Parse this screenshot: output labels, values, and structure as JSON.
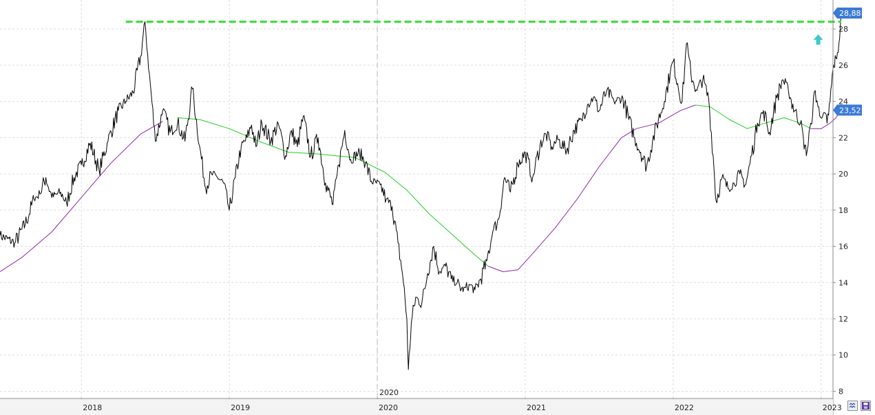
{
  "chart_data": {
    "type": "line",
    "title": "",
    "xlabel": "",
    "ylabel": "",
    "x_range": [
      2017.45,
      2023.08
    ],
    "y_range": [
      7.6,
      29.6
    ],
    "y_ticks": [
      "8",
      "10",
      "12",
      "14",
      "16",
      "18",
      "20",
      "22",
      "24",
      "26",
      "28"
    ],
    "x_ticks": [
      {
        "year": 2018,
        "label": "2018"
      },
      {
        "year": 2019,
        "label": "2019"
      },
      {
        "year": 2020,
        "label": "2020"
      },
      {
        "year": 2021,
        "label": "2021"
      },
      {
        "year": 2022,
        "label": "2022"
      },
      {
        "year": 2023,
        "label": "2023"
      }
    ],
    "vertical_marker": {
      "year": 2020,
      "label": "2020"
    },
    "grid": true,
    "series": [
      {
        "role": "price",
        "color": "#000000",
        "points": [
          [
            2017.45,
            16.6
          ],
          [
            2017.55,
            16.2
          ],
          [
            2017.62,
            17.2
          ],
          [
            2017.68,
            18.6
          ],
          [
            2017.72,
            18.9
          ],
          [
            2017.76,
            19.8
          ],
          [
            2017.8,
            18.7
          ],
          [
            2017.86,
            19.0
          ],
          [
            2017.9,
            18.4
          ],
          [
            2017.95,
            19.8
          ],
          [
            2018.0,
            20.5
          ],
          [
            2018.06,
            21.7
          ],
          [
            2018.12,
            20.2
          ],
          [
            2018.18,
            21.8
          ],
          [
            2018.25,
            23.5
          ],
          [
            2018.3,
            24.0
          ],
          [
            2018.35,
            24.5
          ],
          [
            2018.4,
            26.5
          ],
          [
            2018.43,
            28.4
          ],
          [
            2018.46,
            25.5
          ],
          [
            2018.5,
            21.8
          ],
          [
            2018.55,
            23.5
          ],
          [
            2018.6,
            22.3
          ],
          [
            2018.65,
            22.8
          ],
          [
            2018.7,
            21.8
          ],
          [
            2018.75,
            24.7
          ],
          [
            2018.8,
            21.5
          ],
          [
            2018.84,
            19.2
          ],
          [
            2018.88,
            20.0
          ],
          [
            2018.92,
            19.8
          ],
          [
            2018.96,
            19.5
          ],
          [
            2019.0,
            18.0
          ],
          [
            2019.04,
            19.8
          ],
          [
            2019.08,
            21.5
          ],
          [
            2019.12,
            22.0
          ],
          [
            2019.15,
            22.7
          ],
          [
            2019.18,
            21.5
          ],
          [
            2019.22,
            22.8
          ],
          [
            2019.28,
            21.8
          ],
          [
            2019.33,
            22.8
          ],
          [
            2019.38,
            21.0
          ],
          [
            2019.42,
            22.4
          ],
          [
            2019.46,
            21.5
          ],
          [
            2019.5,
            23.2
          ],
          [
            2019.55,
            21.0
          ],
          [
            2019.6,
            22.0
          ],
          [
            2019.65,
            19.5
          ],
          [
            2019.7,
            18.3
          ],
          [
            2019.74,
            20.5
          ],
          [
            2019.78,
            22.4
          ],
          [
            2019.82,
            20.8
          ],
          [
            2019.88,
            21.2
          ],
          [
            2019.92,
            20.6
          ],
          [
            2019.96,
            19.6
          ],
          [
            2020.02,
            19.4
          ],
          [
            2020.06,
            18.6
          ],
          [
            2020.1,
            18.2
          ],
          [
            2020.14,
            16.2
          ],
          [
            2020.17,
            14.5
          ],
          [
            2020.2,
            12.0
          ],
          [
            2020.21,
            9.2
          ],
          [
            2020.23,
            11.8
          ],
          [
            2020.26,
            13.2
          ],
          [
            2020.3,
            12.8
          ],
          [
            2020.34,
            14.5
          ],
          [
            2020.38,
            16.0
          ],
          [
            2020.42,
            14.6
          ],
          [
            2020.46,
            14.9
          ],
          [
            2020.5,
            14.2
          ],
          [
            2020.54,
            14.0
          ],
          [
            2020.58,
            13.5
          ],
          [
            2020.62,
            13.9
          ],
          [
            2020.66,
            13.6
          ],
          [
            2020.7,
            14.2
          ],
          [
            2020.74,
            15.2
          ],
          [
            2020.78,
            16.8
          ],
          [
            2020.82,
            17.5
          ],
          [
            2020.86,
            19.8
          ],
          [
            2020.9,
            19.0
          ],
          [
            2020.95,
            20.5
          ],
          [
            2021.0,
            21.2
          ],
          [
            2021.05,
            19.8
          ],
          [
            2021.1,
            21.6
          ],
          [
            2021.14,
            22.2
          ],
          [
            2021.18,
            21.5
          ],
          [
            2021.22,
            21.9
          ],
          [
            2021.28,
            21.3
          ],
          [
            2021.33,
            22.4
          ],
          [
            2021.38,
            23.0
          ],
          [
            2021.42,
            23.8
          ],
          [
            2021.46,
            24.2
          ],
          [
            2021.5,
            23.5
          ],
          [
            2021.55,
            24.6
          ],
          [
            2021.6,
            24.0
          ],
          [
            2021.66,
            24.2
          ],
          [
            2021.7,
            23.0
          ],
          [
            2021.74,
            22.0
          ],
          [
            2021.78,
            21.2
          ],
          [
            2021.82,
            20.4
          ],
          [
            2021.86,
            21.8
          ],
          [
            2021.9,
            23.0
          ],
          [
            2021.94,
            24.0
          ],
          [
            2021.98,
            25.6
          ],
          [
            2022.0,
            26.2
          ],
          [
            2022.03,
            25.0
          ],
          [
            2022.06,
            24.0
          ],
          [
            2022.09,
            27.2
          ],
          [
            2022.12,
            25.5
          ],
          [
            2022.16,
            24.6
          ],
          [
            2022.2,
            25.2
          ],
          [
            2022.24,
            24.1
          ],
          [
            2022.27,
            21.0
          ],
          [
            2022.29,
            18.5
          ],
          [
            2022.33,
            19.8
          ],
          [
            2022.37,
            19.2
          ],
          [
            2022.41,
            19.5
          ],
          [
            2022.45,
            20.0
          ],
          [
            2022.49,
            19.4
          ],
          [
            2022.53,
            21.0
          ],
          [
            2022.57,
            22.8
          ],
          [
            2022.61,
            23.5
          ],
          [
            2022.65,
            22.3
          ],
          [
            2022.7,
            24.2
          ],
          [
            2022.74,
            25.2
          ],
          [
            2022.78,
            24.5
          ],
          [
            2022.82,
            23.5
          ],
          [
            2022.86,
            22.8
          ],
          [
            2022.88,
            22.0
          ],
          [
            2022.9,
            21.0
          ],
          [
            2022.93,
            22.8
          ],
          [
            2022.96,
            24.6
          ],
          [
            2022.99,
            23.2
          ],
          [
            2023.02,
            23.4
          ],
          [
            2023.04,
            22.8
          ],
          [
            2023.06,
            24.0
          ],
          [
            2023.08,
            25.8
          ],
          [
            2023.1,
            26.4
          ],
          [
            2023.12,
            27.2
          ],
          [
            2023.135,
            28.88
          ]
        ]
      },
      {
        "role": "moving-average-rising",
        "color": "#8e24aa",
        "points": [
          [
            2017.45,
            14.6
          ],
          [
            2017.6,
            15.4
          ],
          [
            2017.8,
            16.8
          ],
          [
            2018.0,
            18.7
          ],
          [
            2018.2,
            20.6
          ],
          [
            2018.4,
            22.2
          ],
          [
            2018.55,
            22.9
          ]
        ]
      },
      {
        "role": "moving-average-falling",
        "color": "#22cc22",
        "points": [
          [
            2018.65,
            23.1
          ],
          [
            2018.8,
            23.0
          ],
          [
            2019.0,
            22.5
          ],
          [
            2019.2,
            21.8
          ],
          [
            2019.4,
            21.2
          ],
          [
            2019.6,
            21.1
          ],
          [
            2019.85,
            20.9
          ],
          [
            2020.05,
            20.1
          ],
          [
            2020.2,
            19.1
          ],
          [
            2020.35,
            17.8
          ],
          [
            2020.5,
            16.7
          ],
          [
            2020.65,
            15.6
          ],
          [
            2020.75,
            14.9
          ]
        ]
      },
      {
        "role": "moving-average-rising",
        "color": "#8e24aa",
        "points": [
          [
            2020.75,
            14.9
          ],
          [
            2020.85,
            14.6
          ],
          [
            2020.95,
            14.7
          ],
          [
            2021.05,
            15.6
          ],
          [
            2021.2,
            17.0
          ],
          [
            2021.35,
            18.6
          ],
          [
            2021.5,
            20.4
          ],
          [
            2021.65,
            22.0
          ],
          [
            2021.75,
            22.5
          ],
          [
            2021.9,
            22.8
          ],
          [
            2022.05,
            23.5
          ],
          [
            2022.15,
            23.8
          ]
        ]
      },
      {
        "role": "moving-average-falling",
        "color": "#22cc22",
        "points": [
          [
            2022.15,
            23.8
          ],
          [
            2022.25,
            23.7
          ],
          [
            2022.38,
            23.0
          ],
          [
            2022.5,
            22.5
          ],
          [
            2022.62,
            22.8
          ],
          [
            2022.75,
            23.1
          ],
          [
            2022.86,
            22.8
          ],
          [
            2022.93,
            22.5
          ]
        ]
      },
      {
        "role": "moving-average-rising",
        "color": "#8e24aa",
        "points": [
          [
            2022.93,
            22.5
          ],
          [
            2023.0,
            22.5
          ],
          [
            2023.06,
            22.8
          ],
          [
            2023.1,
            23.1
          ],
          [
            2023.135,
            23.52
          ]
        ]
      }
    ],
    "resistance_line": {
      "y": 28.4,
      "x_start": 2018.3,
      "x_end": 2023.135,
      "color": "#33dd33"
    },
    "last_price_tag": {
      "value": 28.88,
      "label": "28,88",
      "color": "#3a7bd5"
    },
    "moving_average_tag": {
      "value": 23.52,
      "label": "23,52",
      "color": "#3a7bd5"
    },
    "signal_arrow": {
      "x": 2022.98,
      "y": 27.4,
      "color": "#3ec9c9",
      "direction": "up"
    },
    "axis_color": "#888888",
    "grid_color": "#dddddd"
  },
  "controls": {
    "zoom_icon": "zoom-icon",
    "save_icon": "save-disk-icon"
  }
}
